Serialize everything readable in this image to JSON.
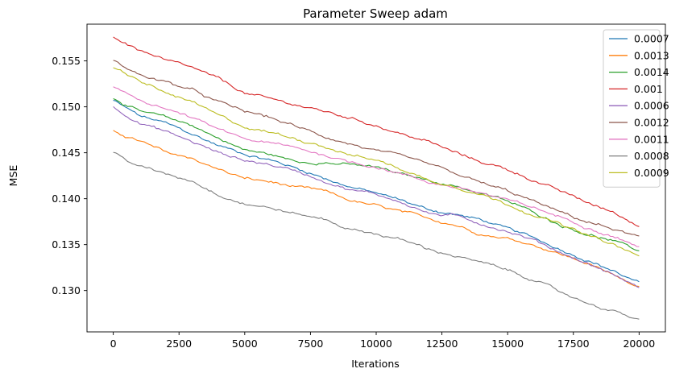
{
  "chart_data": {
    "type": "line",
    "title": "Parameter Sweep adam",
    "xlabel": "Iterations",
    "ylabel": "MSE",
    "xlim": [
      -1000,
      21000
    ],
    "ylim": [
      0.1255,
      0.159
    ],
    "x_ticks": [
      0,
      2500,
      5000,
      7500,
      10000,
      12500,
      15000,
      17500,
      20000
    ],
    "x_tick_labels": [
      "0",
      "2500",
      "5000",
      "7500",
      "10000",
      "12500",
      "15000",
      "17500",
      "20000"
    ],
    "y_ticks": [
      0.13,
      0.135,
      0.14,
      0.145,
      0.15,
      0.155
    ],
    "y_tick_labels": [
      "0.130",
      "0.135",
      "0.140",
      "0.145",
      "0.150",
      "0.155"
    ],
    "grid": false,
    "legend": "top-right",
    "x": [
      0,
      1000,
      2000,
      3000,
      4000,
      5000,
      6000,
      7000,
      8000,
      9000,
      10000,
      11000,
      12000,
      13000,
      14000,
      15000,
      16000,
      17000,
      18000,
      19000,
      20000
    ],
    "series": [
      {
        "name": "0.0007",
        "color": "#1f77b4",
        "values": [
          0.1507,
          0.149,
          0.1482,
          0.147,
          0.1458,
          0.1449,
          0.1442,
          0.1433,
          0.1423,
          0.1413,
          0.1406,
          0.1398,
          0.1388,
          0.1383,
          0.1377,
          0.1367,
          0.1357,
          0.1345,
          0.1334,
          0.1322,
          0.1308
        ]
      },
      {
        "name": "0.0013",
        "color": "#ff7f0e",
        "values": [
          0.1474,
          0.1463,
          0.145,
          0.1444,
          0.1432,
          0.1422,
          0.1418,
          0.1412,
          0.1408,
          0.1398,
          0.1392,
          0.1385,
          0.1378,
          0.1372,
          0.1362,
          0.1357,
          0.135,
          0.134,
          0.133,
          0.1317,
          0.1305
        ]
      },
      {
        "name": "0.0014",
        "color": "#2ca02c",
        "values": [
          0.151,
          0.1495,
          0.1488,
          0.148,
          0.1466,
          0.1453,
          0.1448,
          0.144,
          0.144,
          0.1437,
          0.1434,
          0.1426,
          0.142,
          0.1414,
          0.1406,
          0.1397,
          0.1385,
          0.1372,
          0.1362,
          0.1354,
          0.1343
        ]
      },
      {
        "name": "0.001",
        "color": "#d62728",
        "values": [
          0.1576,
          0.1562,
          0.155,
          0.1542,
          0.153,
          0.1515,
          0.1508,
          0.1502,
          0.1495,
          0.1488,
          0.148,
          0.147,
          0.1462,
          0.145,
          0.144,
          0.1432,
          0.142,
          0.1408,
          0.1396,
          0.1385,
          0.137
        ]
      },
      {
        "name": "0.0006",
        "color": "#9467bd",
        "values": [
          0.15,
          0.1483,
          0.1473,
          0.1462,
          0.145,
          0.1442,
          0.1437,
          0.143,
          0.142,
          0.141,
          0.1405,
          0.1396,
          0.1384,
          0.1381,
          0.1373,
          0.1365,
          0.1355,
          0.1342,
          0.133,
          0.1318,
          0.1303
        ]
      },
      {
        "name": "0.0012",
        "color": "#8c564b",
        "values": [
          0.155,
          0.1535,
          0.1527,
          0.1518,
          0.1505,
          0.1495,
          0.1488,
          0.1478,
          0.1468,
          0.146,
          0.1452,
          0.1445,
          0.1437,
          0.1427,
          0.1417,
          0.1408,
          0.1397,
          0.1385,
          0.1375,
          0.1367,
          0.1358
        ]
      },
      {
        "name": "0.0011",
        "color": "#e377c2",
        "values": [
          0.1521,
          0.1508,
          0.1498,
          0.1488,
          0.1475,
          0.1465,
          0.146,
          0.1455,
          0.1448,
          0.144,
          0.1435,
          0.1427,
          0.1418,
          0.1413,
          0.1406,
          0.1398,
          0.139,
          0.138,
          0.137,
          0.136,
          0.1348
        ]
      },
      {
        "name": "0.0008",
        "color": "#7f7f7f",
        "values": [
          0.145,
          0.1435,
          0.1427,
          0.142,
          0.1405,
          0.1395,
          0.139,
          0.1383,
          0.1378,
          0.1367,
          0.1362,
          0.1355,
          0.1345,
          0.1338,
          0.133,
          0.1322,
          0.1312,
          0.1298,
          0.1287,
          0.1278,
          0.1268
        ]
      },
      {
        "name": "0.0009",
        "color": "#bcbd22",
        "values": [
          0.1542,
          0.1528,
          0.1515,
          0.1505,
          0.149,
          0.1478,
          0.1472,
          0.1465,
          0.1458,
          0.1448,
          0.1442,
          0.1432,
          0.142,
          0.1414,
          0.1405,
          0.1394,
          0.1383,
          0.1372,
          0.136,
          0.135,
          0.1337
        ]
      }
    ]
  }
}
